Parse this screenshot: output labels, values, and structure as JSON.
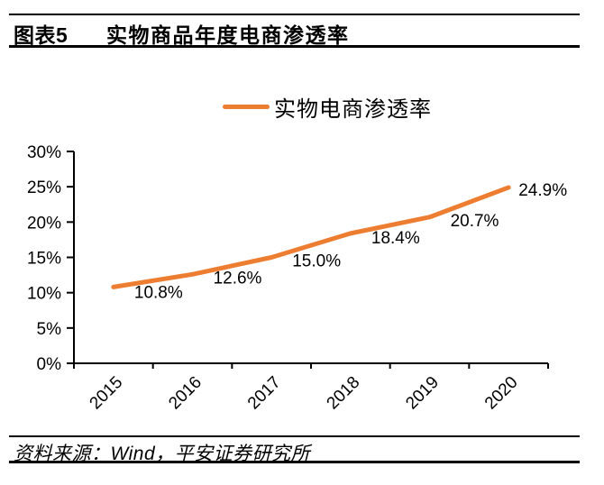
{
  "header": {
    "figure_label": "图表5",
    "title": "实物商品年度电商渗透率"
  },
  "legend": {
    "label": "实物电商渗透率"
  },
  "source": {
    "text": "资料来源：Wind，平安证券研究所"
  },
  "colors": {
    "line": "#ED7D31",
    "axis": "#000000",
    "text": "#000000"
  },
  "chart_data": {
    "type": "line",
    "title": "实物商品年度电商渗透率",
    "categories": [
      "2015",
      "2016",
      "2017",
      "2018",
      "2019",
      "2020"
    ],
    "series": [
      {
        "name": "实物电商渗透率",
        "values": [
          10.8,
          12.6,
          15.0,
          18.4,
          20.7,
          24.9
        ],
        "color": "#ED7D31"
      }
    ],
    "data_labels": [
      "10.8%",
      "12.6%",
      "15.0%",
      "18.4%",
      "20.7%",
      "24.9%"
    ],
    "y_tick_values": [
      0,
      5,
      10,
      15,
      20,
      25,
      30
    ],
    "y_tick_labels": [
      "0%",
      "5%",
      "10%",
      "15%",
      "20%",
      "25%",
      "30%"
    ],
    "ylim": [
      0,
      30
    ],
    "grid": false,
    "legend_position": "top",
    "x_label_rotation": -45
  }
}
